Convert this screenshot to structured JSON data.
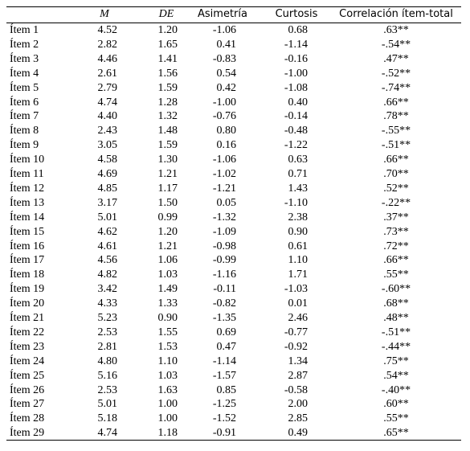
{
  "table": {
    "header": [
      "M",
      "DE",
      "Asimetría",
      "Curtosis",
      "Correlación ítem-total"
    ],
    "rows": [
      [
        "Ítem 1",
        "4.52",
        "1.20",
        "-1.06",
        "0.68",
        ".63**"
      ],
      [
        "Ítem 2",
        "2.82",
        "1.65",
        "0.41",
        "-1.14",
        "-.54**"
      ],
      [
        "Ítem 3",
        "4.46",
        "1.41",
        "-0.83",
        "-0.16",
        ".47**"
      ],
      [
        "Ítem 4",
        "2.61",
        "1.56",
        "0.54",
        "-1.00",
        "-.52**"
      ],
      [
        "Ítem 5",
        "2.79",
        "1.59",
        "0.42",
        "-1.08",
        "-.74**"
      ],
      [
        "Ítem 6",
        "4.74",
        "1.28",
        "-1.00",
        "0.40",
        ".66**"
      ],
      [
        "Ítem 7",
        "4.40",
        "1.32",
        "-0.76",
        "-0.14",
        ".78**"
      ],
      [
        "Ítem 8",
        "2.43",
        "1.48",
        "0.80",
        "-0.48",
        "-.55**"
      ],
      [
        "Ítem 9",
        "3.05",
        "1.59",
        "0.16",
        "-1.22",
        "-.51**"
      ],
      [
        "Ítem 10",
        "4.58",
        "1.30",
        "-1.06",
        "0.63",
        ".66**"
      ],
      [
        "Ítem 11",
        "4.69",
        "1.21",
        "-1.02",
        "0.71",
        ".70**"
      ],
      [
        "Ítem 12",
        "4.85",
        "1.17",
        "-1.21",
        "1.43",
        ".52**"
      ],
      [
        "Ítem 13",
        "3.17",
        "1.50",
        "0.05",
        "-1.10",
        "-.22**"
      ],
      [
        "Ítem 14",
        "5.01",
        "0.99",
        "-1.32",
        "2.38",
        ".37**"
      ],
      [
        "Ítem 15",
        "4.62",
        "1.20",
        "-1.09",
        "0.90",
        ".73**"
      ],
      [
        "Ítem 16",
        "4.61",
        "1.21",
        "-0.98",
        "0.61",
        ".72**"
      ],
      [
        "Ítem 17",
        "4.56",
        "1.06",
        "-0.99",
        "1.10",
        ".66**"
      ],
      [
        "Ítem 18",
        "4.82",
        "1.03",
        "-1.16",
        "1.71",
        ".55**"
      ],
      [
        "Ítem 19",
        "3.42",
        "1.49",
        "-0.11",
        "-1.03",
        "-.60**"
      ],
      [
        "Ítem 20",
        "4.33",
        "1.33",
        "-0.82",
        "0.01",
        ".68**"
      ],
      [
        "Ítem 21",
        "5.23",
        "0.90",
        "-1.35",
        "2.46",
        ".48**"
      ],
      [
        "Ítem 22",
        "2.53",
        "1.55",
        "0.69",
        "-0.77",
        "-.51**"
      ],
      [
        "Ítem 23",
        "2.81",
        "1.53",
        "0.47",
        "-0.92",
        "-.44**"
      ],
      [
        "Ítem 24",
        "4.80",
        "1.10",
        "-1.14",
        "1.34",
        ".75**"
      ],
      [
        "Ítem 25",
        "5.16",
        "1.03",
        "-1.57",
        "2.87",
        ".54**"
      ],
      [
        "Ítem 26",
        "2.53",
        "1.63",
        "0.85",
        "-0.58",
        "-.40**"
      ],
      [
        "Ítem 27",
        "5.01",
        "1.00",
        "-1.25",
        "2.00",
        ".60**"
      ],
      [
        "Ítem 28",
        "5.18",
        "1.00",
        "-1.52",
        "2.85",
        ".55**"
      ],
      [
        "Ítem 29",
        "4.74",
        "1.18",
        "-0.91",
        "0.49",
        ".65**"
      ]
    ]
  }
}
